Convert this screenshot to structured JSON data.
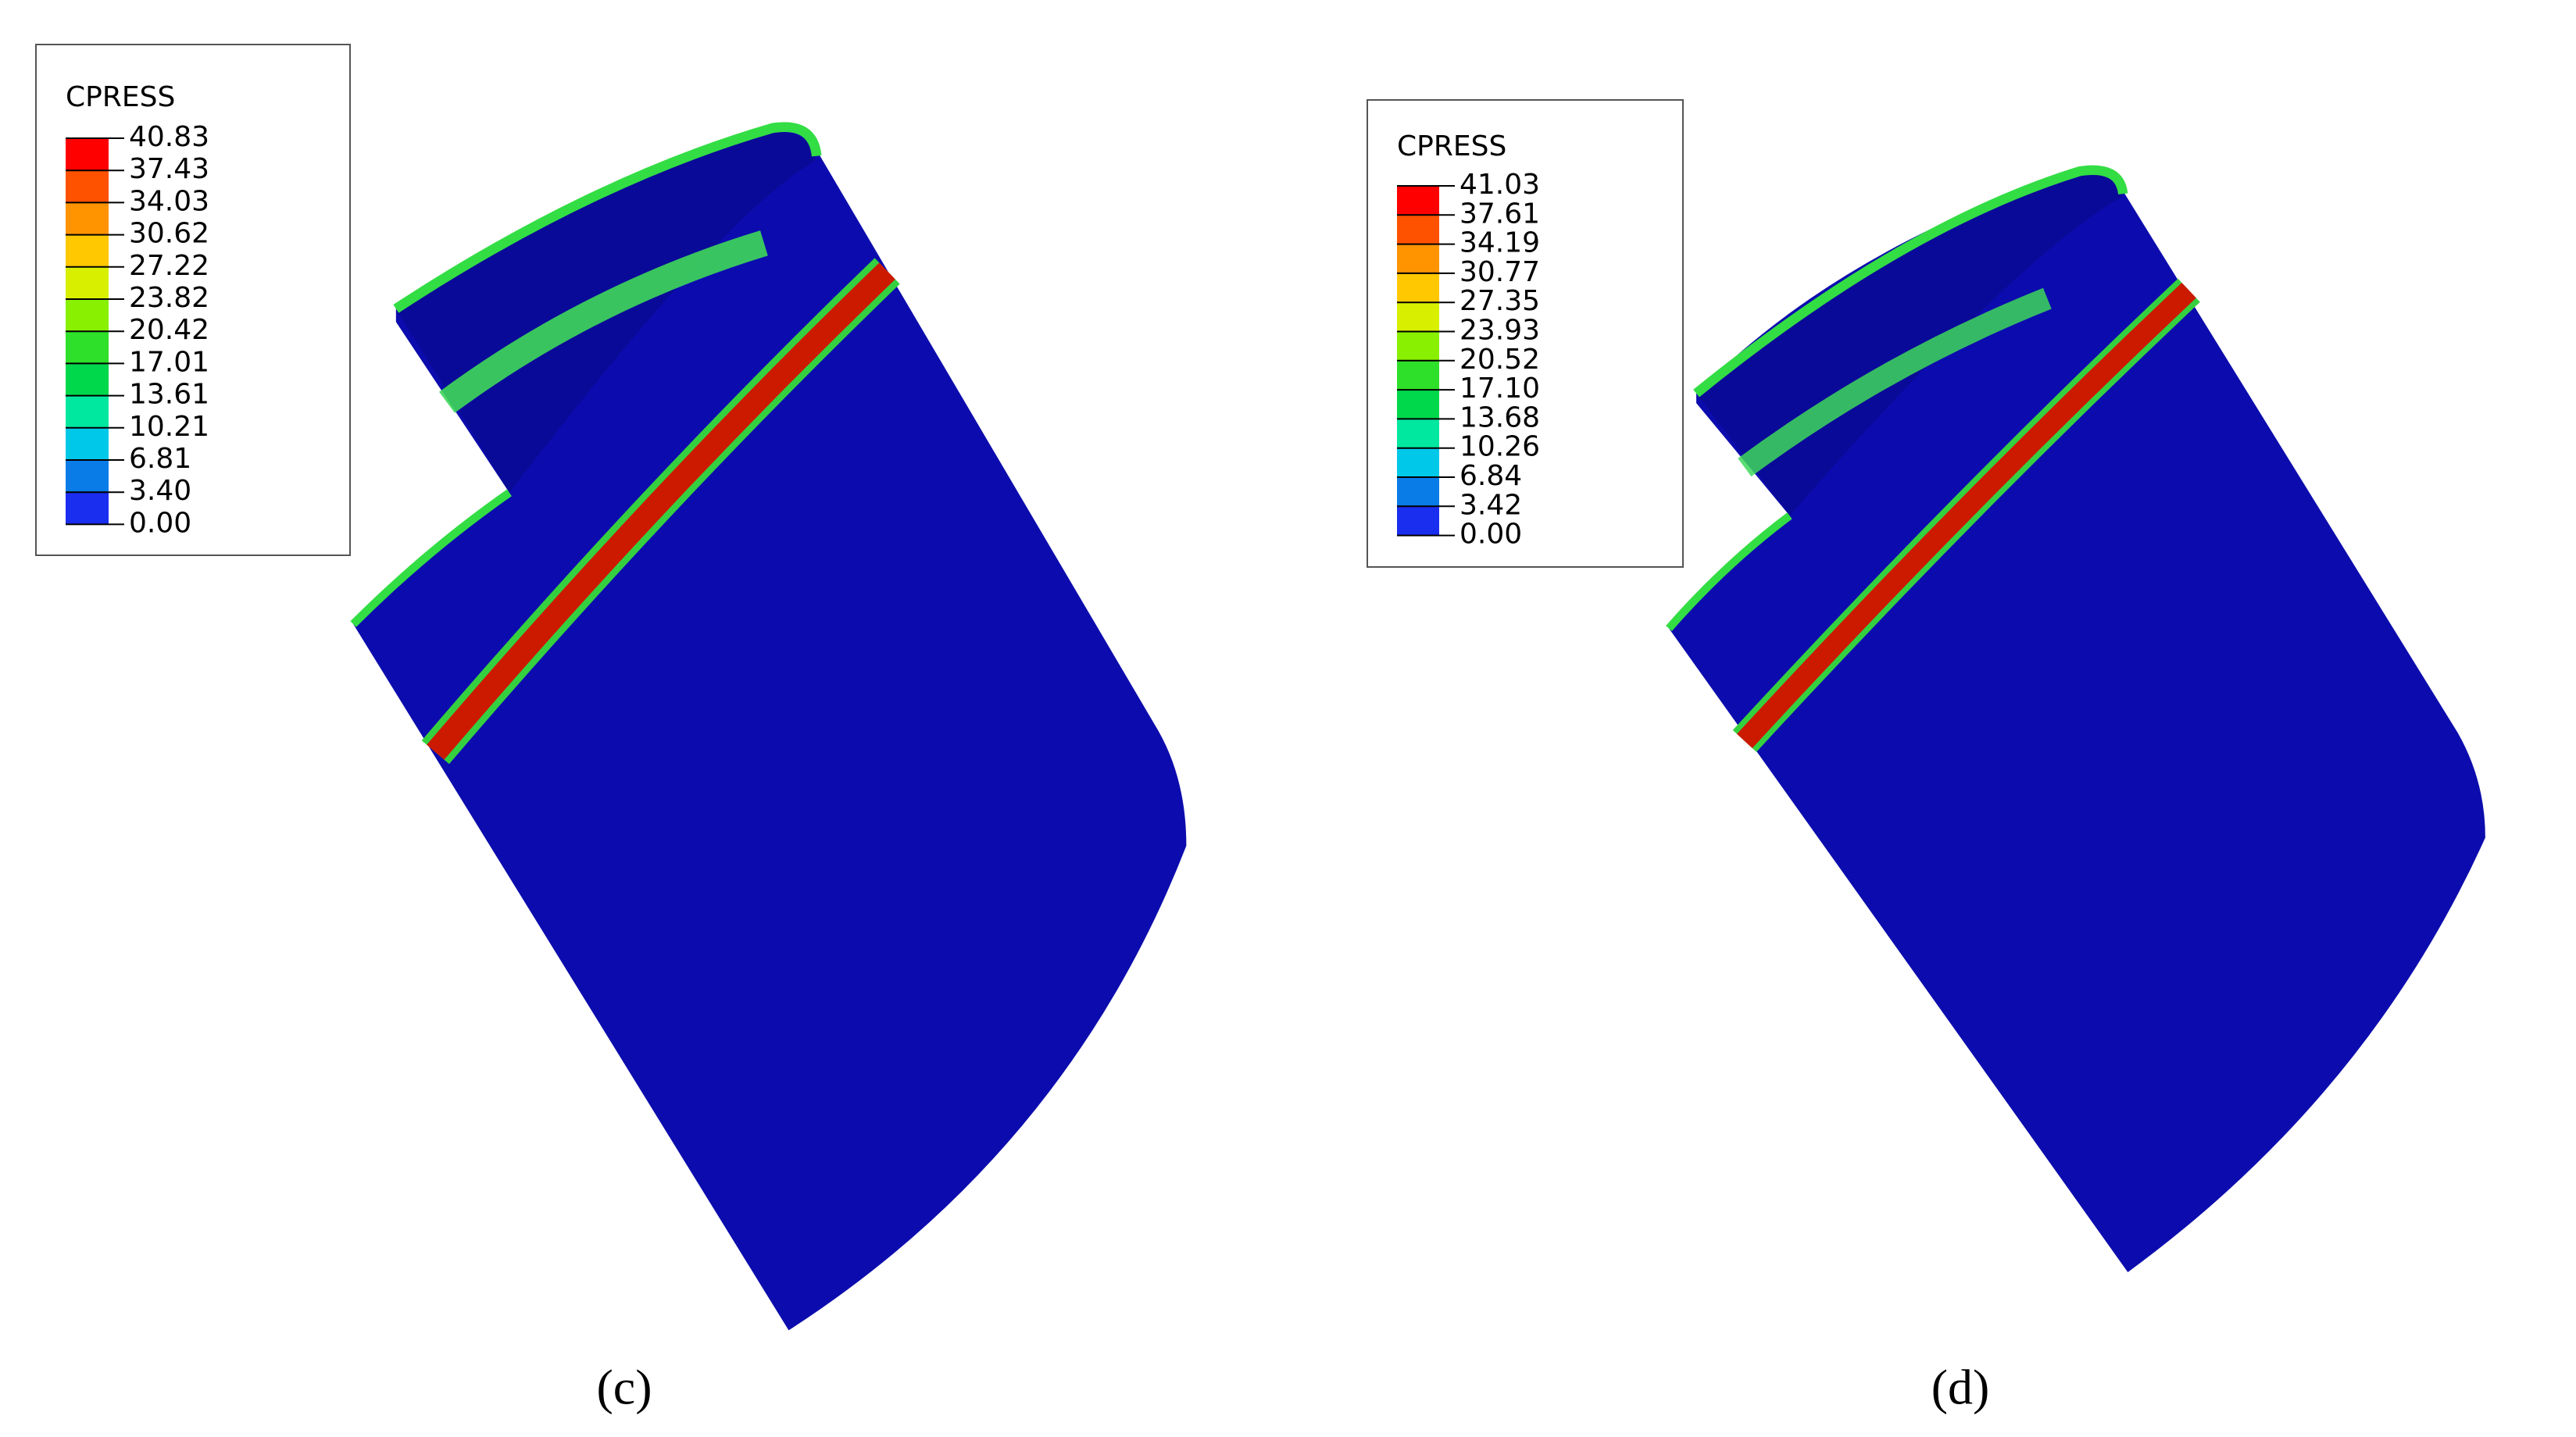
{
  "panels": [
    {
      "legend": {
        "title": "CPRESS",
        "values": [
          "40.83",
          "37.43",
          "34.03",
          "30.62",
          "27.22",
          "23.82",
          "20.42",
          "17.01",
          "13.61",
          "10.21",
          "6.81",
          "3.40",
          "0.00"
        ]
      },
      "label": "(c)"
    },
    {
      "legend": {
        "title": "CPRESS",
        "values": [
          "41.03",
          "37.61",
          "34.19",
          "30.77",
          "27.35",
          "23.93",
          "20.52",
          "17.10",
          "13.68",
          "10.26",
          "6.84",
          "3.42",
          "0.00"
        ]
      },
      "label": "(d)"
    }
  ]
}
